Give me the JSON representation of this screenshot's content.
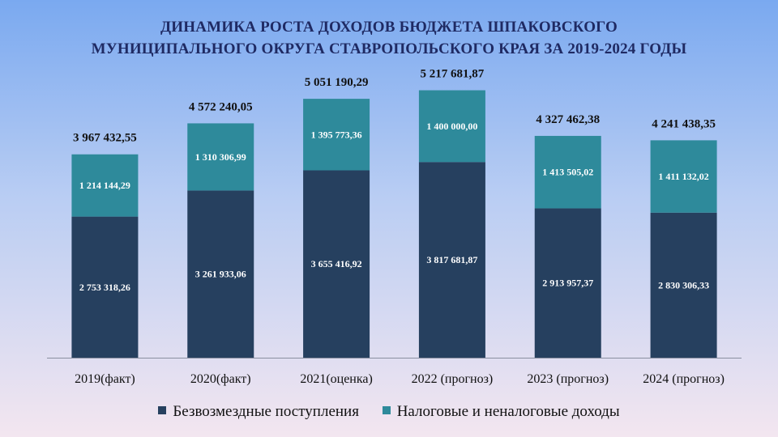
{
  "title": {
    "line1": "ДИНАМИКА  РОСТА ДОХОДОВ  БЮДЖЕТА  ШПАКОВСКОГО",
    "line2": "МУНИЦИПАЛЬНОГО  ОКРУГА СТАВРОПОЛЬСКОГО  КРАЯ ЗА 2019-2024 ГОДЫ"
  },
  "colors": {
    "series_0": "#26405f",
    "series_1": "#2e8a9b"
  },
  "chart_data": {
    "type": "bar",
    "stacked": true,
    "categories": [
      "2019(факт)",
      "2020(факт)",
      "2021(оценка)",
      "2022 (прогноз)",
      "2023  (прогноз)",
      "2024  (прогноз)"
    ],
    "series": [
      {
        "name": "Безвозмездные  поступления",
        "values": [
          2753318.26,
          3261933.06,
          3655416.92,
          3817681.87,
          2913957.37,
          2830306.33
        ],
        "labels": [
          "2 753 318,26",
          "3 261 933,06",
          "3 655 416,92",
          "3 817 681,87",
          "2 913 957,37",
          "2 830 306,33"
        ]
      },
      {
        "name": "Налоговые и неналоговые  доходы",
        "values": [
          1214144.29,
          1310306.99,
          1395773.36,
          1400000.0,
          1413505.02,
          1411132.02
        ],
        "labels": [
          "1 214 144,29",
          "1 310 306,99",
          "1 395 773,36",
          "1 400 000,00",
          "1 413 505,02",
          "1 411 132,02"
        ]
      }
    ],
    "totals": [
      3967432.55,
      4572240.05,
      5051190.29,
      5217681.87,
      4327462.38,
      4241438.35
    ],
    "total_labels": [
      "3 967 432,55",
      "4 572 240,05",
      "5 051 190,29",
      "5 217 681,87",
      "4 327 462,38",
      "4 241 438,35"
    ],
    "ylim": [
      0,
      6000000
    ],
    "grid": false,
    "legend_position": "bottom"
  }
}
